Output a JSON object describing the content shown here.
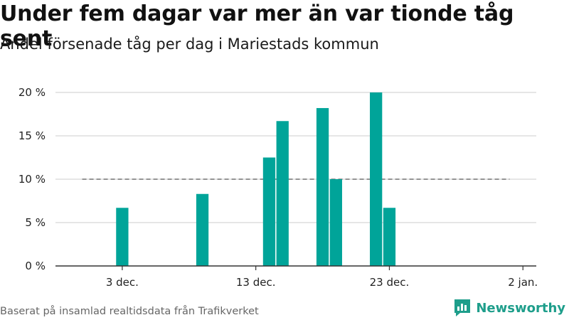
{
  "title": "Under fem dagar var mer än var tionde tåg sent",
  "subtitle": "Andel försenade tåg per dag i Mariestads kommun",
  "source": "Baserat på insamlad realtidsdata från Trafikverket",
  "brand": "Newsworthy",
  "colors": {
    "bar": "#00a499",
    "grid": "#dddddd",
    "reference_line": "#777777",
    "axis": "#333333",
    "brand": "#1e9e8b"
  },
  "chart_data": {
    "type": "bar",
    "x_axis": {
      "min": "2023-11-28",
      "max": "2024-01-03",
      "ticks": [
        {
          "date": "2023-12-03",
          "label": "3 dec."
        },
        {
          "date": "2023-12-13",
          "label": "13 dec."
        },
        {
          "date": "2023-12-23",
          "label": "23 dec."
        },
        {
          "date": "2024-01-02",
          "label": "2 jan."
        }
      ]
    },
    "y_axis": {
      "min": 0,
      "max": 20,
      "ticks": [
        {
          "value": 0,
          "label": "0 %"
        },
        {
          "value": 5,
          "label": "5 %"
        },
        {
          "value": 10,
          "label": "10 %"
        },
        {
          "value": 15,
          "label": "15 %"
        },
        {
          "value": 20,
          "label": "20 %"
        }
      ]
    },
    "grid": true,
    "reference_line": {
      "value": 10,
      "start": "2023-11-30",
      "end": "2024-01-01",
      "style": "dashed"
    },
    "points": [
      {
        "date": "2023-12-03",
        "value": 6.7
      },
      {
        "date": "2023-12-09",
        "value": 8.3
      },
      {
        "date": "2023-12-14",
        "value": 12.5
      },
      {
        "date": "2023-12-15",
        "value": 16.7
      },
      {
        "date": "2023-12-18",
        "value": 18.2
      },
      {
        "date": "2023-12-19",
        "value": 10.0
      },
      {
        "date": "2023-12-22",
        "value": 20.0
      },
      {
        "date": "2023-12-23",
        "value": 6.7
      }
    ]
  }
}
